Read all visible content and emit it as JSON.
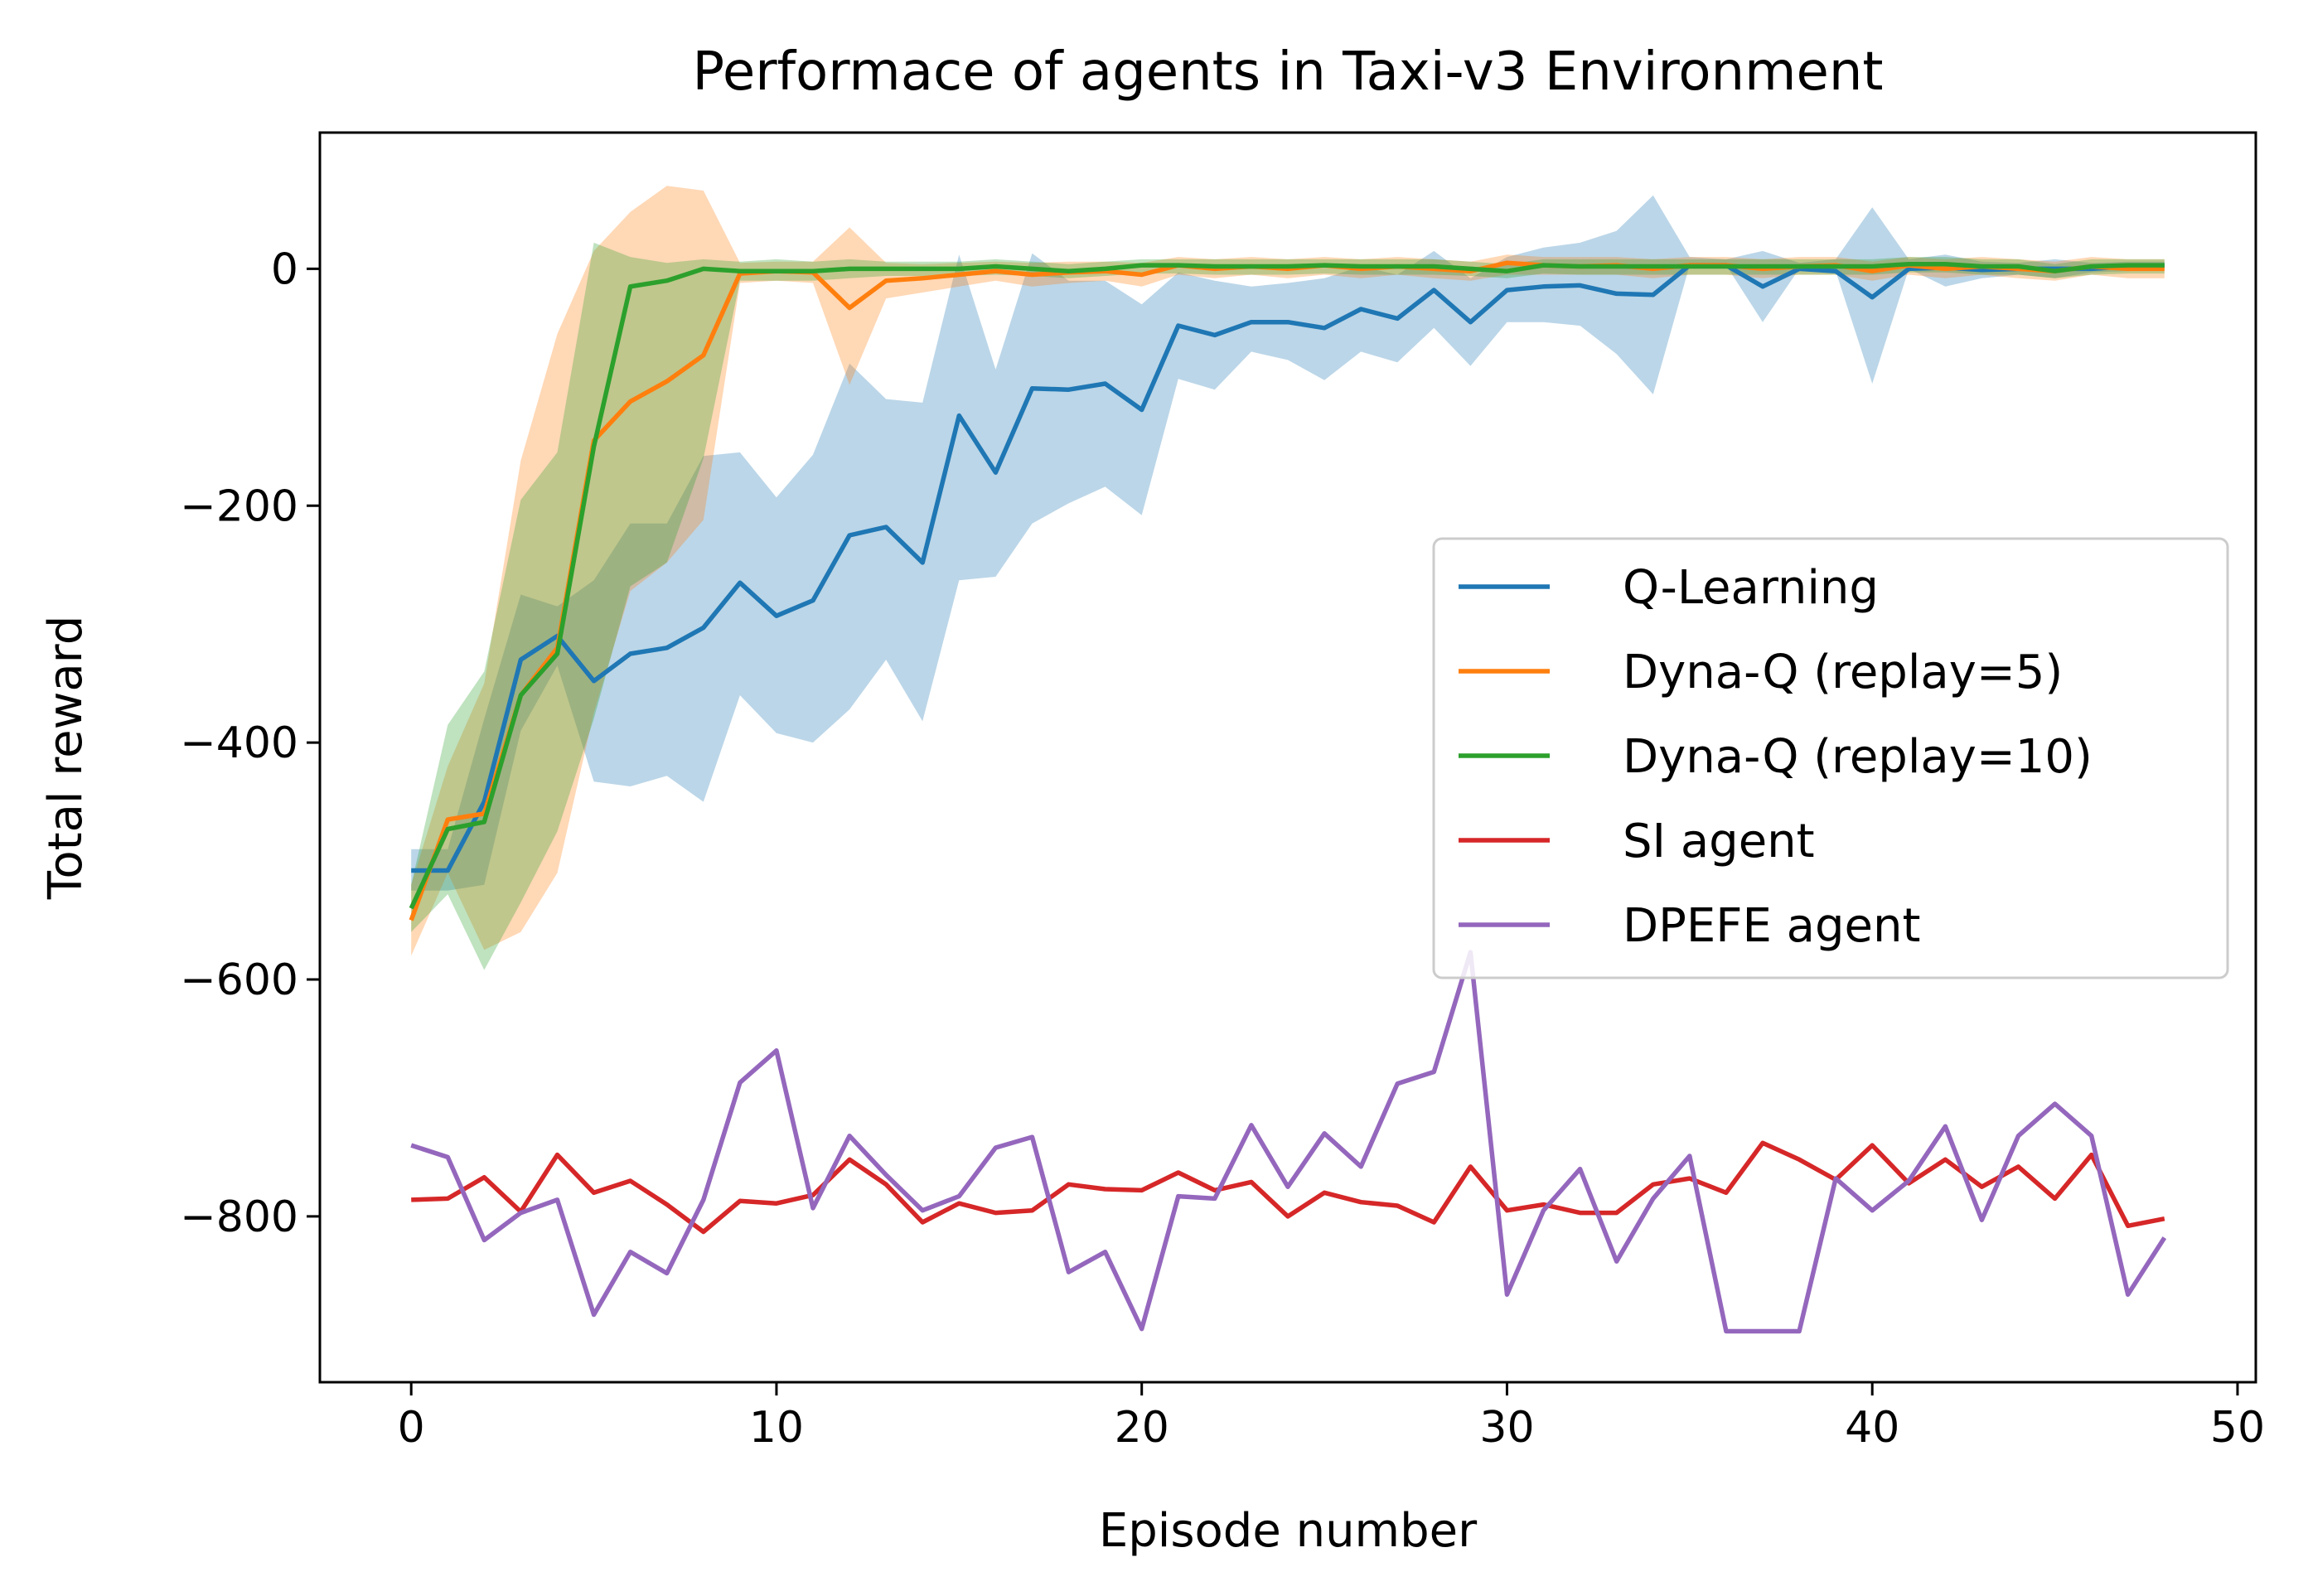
{
  "chart_data": {
    "type": "line",
    "title": "Performace of agents in Taxi-v3 Environment",
    "xlabel": "Episode number",
    "ylabel": "Total reward",
    "xlim": [
      -2.5,
      50.5
    ],
    "ylim": [
      -940,
      115
    ],
    "xticks": [
      0,
      10,
      20,
      30,
      40,
      50
    ],
    "yticks": [
      0,
      -200,
      -400,
      -600,
      -800
    ],
    "grid": false,
    "legend_position": "center-right",
    "x": [
      0,
      1,
      2,
      3,
      4,
      5,
      6,
      7,
      8,
      9,
      10,
      11,
      12,
      13,
      14,
      15,
      16,
      17,
      18,
      19,
      20,
      21,
      22,
      23,
      24,
      25,
      26,
      27,
      28,
      29,
      30,
      31,
      32,
      33,
      34,
      35,
      36,
      37,
      38,
      39,
      40,
      41,
      42,
      43,
      44,
      45,
      46,
      47,
      48
    ],
    "series": [
      {
        "name": "Q-Learning",
        "color": "#1f77b4",
        "values": [
          -508,
          -508,
          -450,
          -330,
          -310,
          -348,
          -325,
          -320,
          -303,
          -265,
          -293,
          -280,
          -225,
          -218,
          -248,
          -124,
          -172,
          -101,
          -102,
          -97,
          -119,
          -48,
          -56,
          -45,
          -45,
          -50,
          -34,
          -42,
          -18,
          -45,
          -18,
          -15,
          -14,
          -21,
          -22,
          3,
          3,
          -15,
          0,
          -2,
          -24,
          0,
          1,
          -1,
          0,
          0,
          0,
          2,
          3
        ],
        "band_low": [
          -525,
          -525,
          -520,
          -390,
          -335,
          -433,
          -437,
          -428,
          -450,
          -360,
          -392,
          -400,
          -372,
          -330,
          -382,
          -263,
          -260,
          -215,
          -198,
          -184,
          -208,
          -93,
          -102,
          -70,
          -77,
          -94,
          -70,
          -79,
          -50,
          -82,
          -45,
          -45,
          -48,
          -72,
          -106,
          3,
          3,
          -45,
          0,
          -2,
          -97,
          0,
          -15,
          -8,
          -5,
          -8,
          -3,
          -2,
          0
        ],
        "band_high": [
          -490,
          -490,
          -380,
          -275,
          -285,
          -263,
          -215,
          -215,
          -158,
          -155,
          -193,
          -157,
          -80,
          -110,
          -113,
          12,
          -85,
          13,
          -10,
          -10,
          -30,
          -3,
          -10,
          -15,
          -12,
          -8,
          2,
          -5,
          15,
          -8,
          10,
          18,
          22,
          32,
          62,
          10,
          8,
          15,
          5,
          8,
          52,
          8,
          12,
          6,
          5,
          8,
          5,
          6,
          6
        ]
      },
      {
        "name": "Dyna-Q (replay=5)",
        "color": "#ff7f0e",
        "values": [
          -550,
          -465,
          -460,
          -360,
          -320,
          -145,
          -112,
          -95,
          -73,
          -4,
          -2,
          -3,
          -33,
          -10,
          -8,
          -5,
          -2,
          -5,
          -3,
          -2,
          -5,
          3,
          0,
          2,
          0,
          3,
          0,
          2,
          0,
          -2,
          5,
          3,
          2,
          3,
          0,
          3,
          3,
          0,
          2,
          3,
          -2,
          3,
          0,
          2,
          0,
          -2,
          2,
          0,
          0
        ],
        "band_low": [
          -580,
          -510,
          -575,
          -560,
          -510,
          -375,
          -272,
          -248,
          -212,
          -12,
          -10,
          -12,
          -98,
          -25,
          -20,
          -15,
          -10,
          -15,
          -12,
          -10,
          -15,
          -5,
          -8,
          -5,
          -8,
          -5,
          -8,
          -5,
          -8,
          -10,
          -5,
          -5,
          -5,
          -5,
          -8,
          -5,
          -5,
          -8,
          -5,
          -5,
          -10,
          -5,
          -8,
          -5,
          -8,
          -10,
          -5,
          -8,
          -8
        ],
        "band_high": [
          -520,
          -420,
          -350,
          -162,
          -55,
          15,
          48,
          70,
          66,
          5,
          6,
          6,
          35,
          5,
          4,
          5,
          6,
          5,
          6,
          6,
          5,
          10,
          8,
          10,
          8,
          10,
          8,
          10,
          8,
          6,
          12,
          10,
          10,
          10,
          8,
          10,
          10,
          8,
          10,
          10,
          6,
          10,
          8,
          10,
          8,
          6,
          10,
          8,
          8
        ]
      },
      {
        "name": "Dyna-Q (replay=10)",
        "color": "#2ca02c",
        "values": [
          -540,
          -473,
          -467,
          -360,
          -325,
          -150,
          -15,
          -10,
          0,
          -2,
          -2,
          -2,
          0,
          0,
          0,
          0,
          2,
          0,
          -2,
          0,
          3,
          3,
          2,
          2,
          2,
          3,
          2,
          2,
          2,
          0,
          -2,
          3,
          2,
          2,
          2,
          2,
          2,
          2,
          2,
          2,
          2,
          4,
          4,
          2,
          2,
          -2,
          2,
          3,
          3
        ],
        "band_low": [
          -560,
          -528,
          -592,
          -535,
          -475,
          -380,
          -268,
          -248,
          -160,
          -10,
          -10,
          -10,
          -8,
          -6,
          -6,
          -6,
          -5,
          -6,
          -8,
          -6,
          -4,
          -4,
          -5,
          -5,
          -5,
          -4,
          -5,
          -5,
          -5,
          -6,
          -8,
          -4,
          -5,
          -5,
          -5,
          -5,
          -5,
          -5,
          -5,
          -5,
          -5,
          -3,
          -3,
          -5,
          -5,
          -8,
          -5,
          -4,
          -4
        ],
        "band_high": [
          -520,
          -385,
          -340,
          -195,
          -155,
          22,
          10,
          5,
          8,
          6,
          8,
          6,
          8,
          6,
          6,
          6,
          8,
          6,
          4,
          6,
          8,
          8,
          8,
          8,
          8,
          8,
          8,
          8,
          8,
          6,
          4,
          8,
          8,
          8,
          8,
          8,
          8,
          8,
          8,
          8,
          8,
          10,
          10,
          8,
          8,
          4,
          8,
          8,
          8
        ]
      },
      {
        "name": "SI agent",
        "color": "#d62728",
        "values": [
          -786,
          -785,
          -767,
          -796,
          -748,
          -780,
          -770,
          -790,
          -813,
          -787,
          -789,
          -782,
          -752,
          -773,
          -805,
          -789,
          -797,
          -795,
          -773,
          -777,
          -778,
          -763,
          -778,
          -771,
          -800,
          -780,
          -788,
          -791,
          -805,
          -758,
          -795,
          -790,
          -797,
          -797,
          -773,
          -768,
          -780,
          -738,
          -752,
          -769,
          -740,
          -772,
          -752,
          -775,
          -758,
          -785,
          -748,
          -808,
          -802
        ]
      },
      {
        "name": "DPEFE agent",
        "color": "#9467bd",
        "values": [
          -740,
          -750,
          -820,
          -797,
          -786,
          -883,
          -830,
          -848,
          -786,
          -687,
          -660,
          -793,
          -732,
          -765,
          -795,
          -783,
          -742,
          -733,
          -847,
          -830,
          -895,
          -783,
          -785,
          -723,
          -775,
          -730,
          -758,
          -688,
          -678,
          -577,
          -866,
          -795,
          -760,
          -838,
          -785,
          -749,
          -897,
          -897,
          -897,
          -768,
          -795,
          -770,
          -724,
          -803,
          -732,
          -705,
          -732,
          -866,
          -818
        ]
      }
    ]
  }
}
